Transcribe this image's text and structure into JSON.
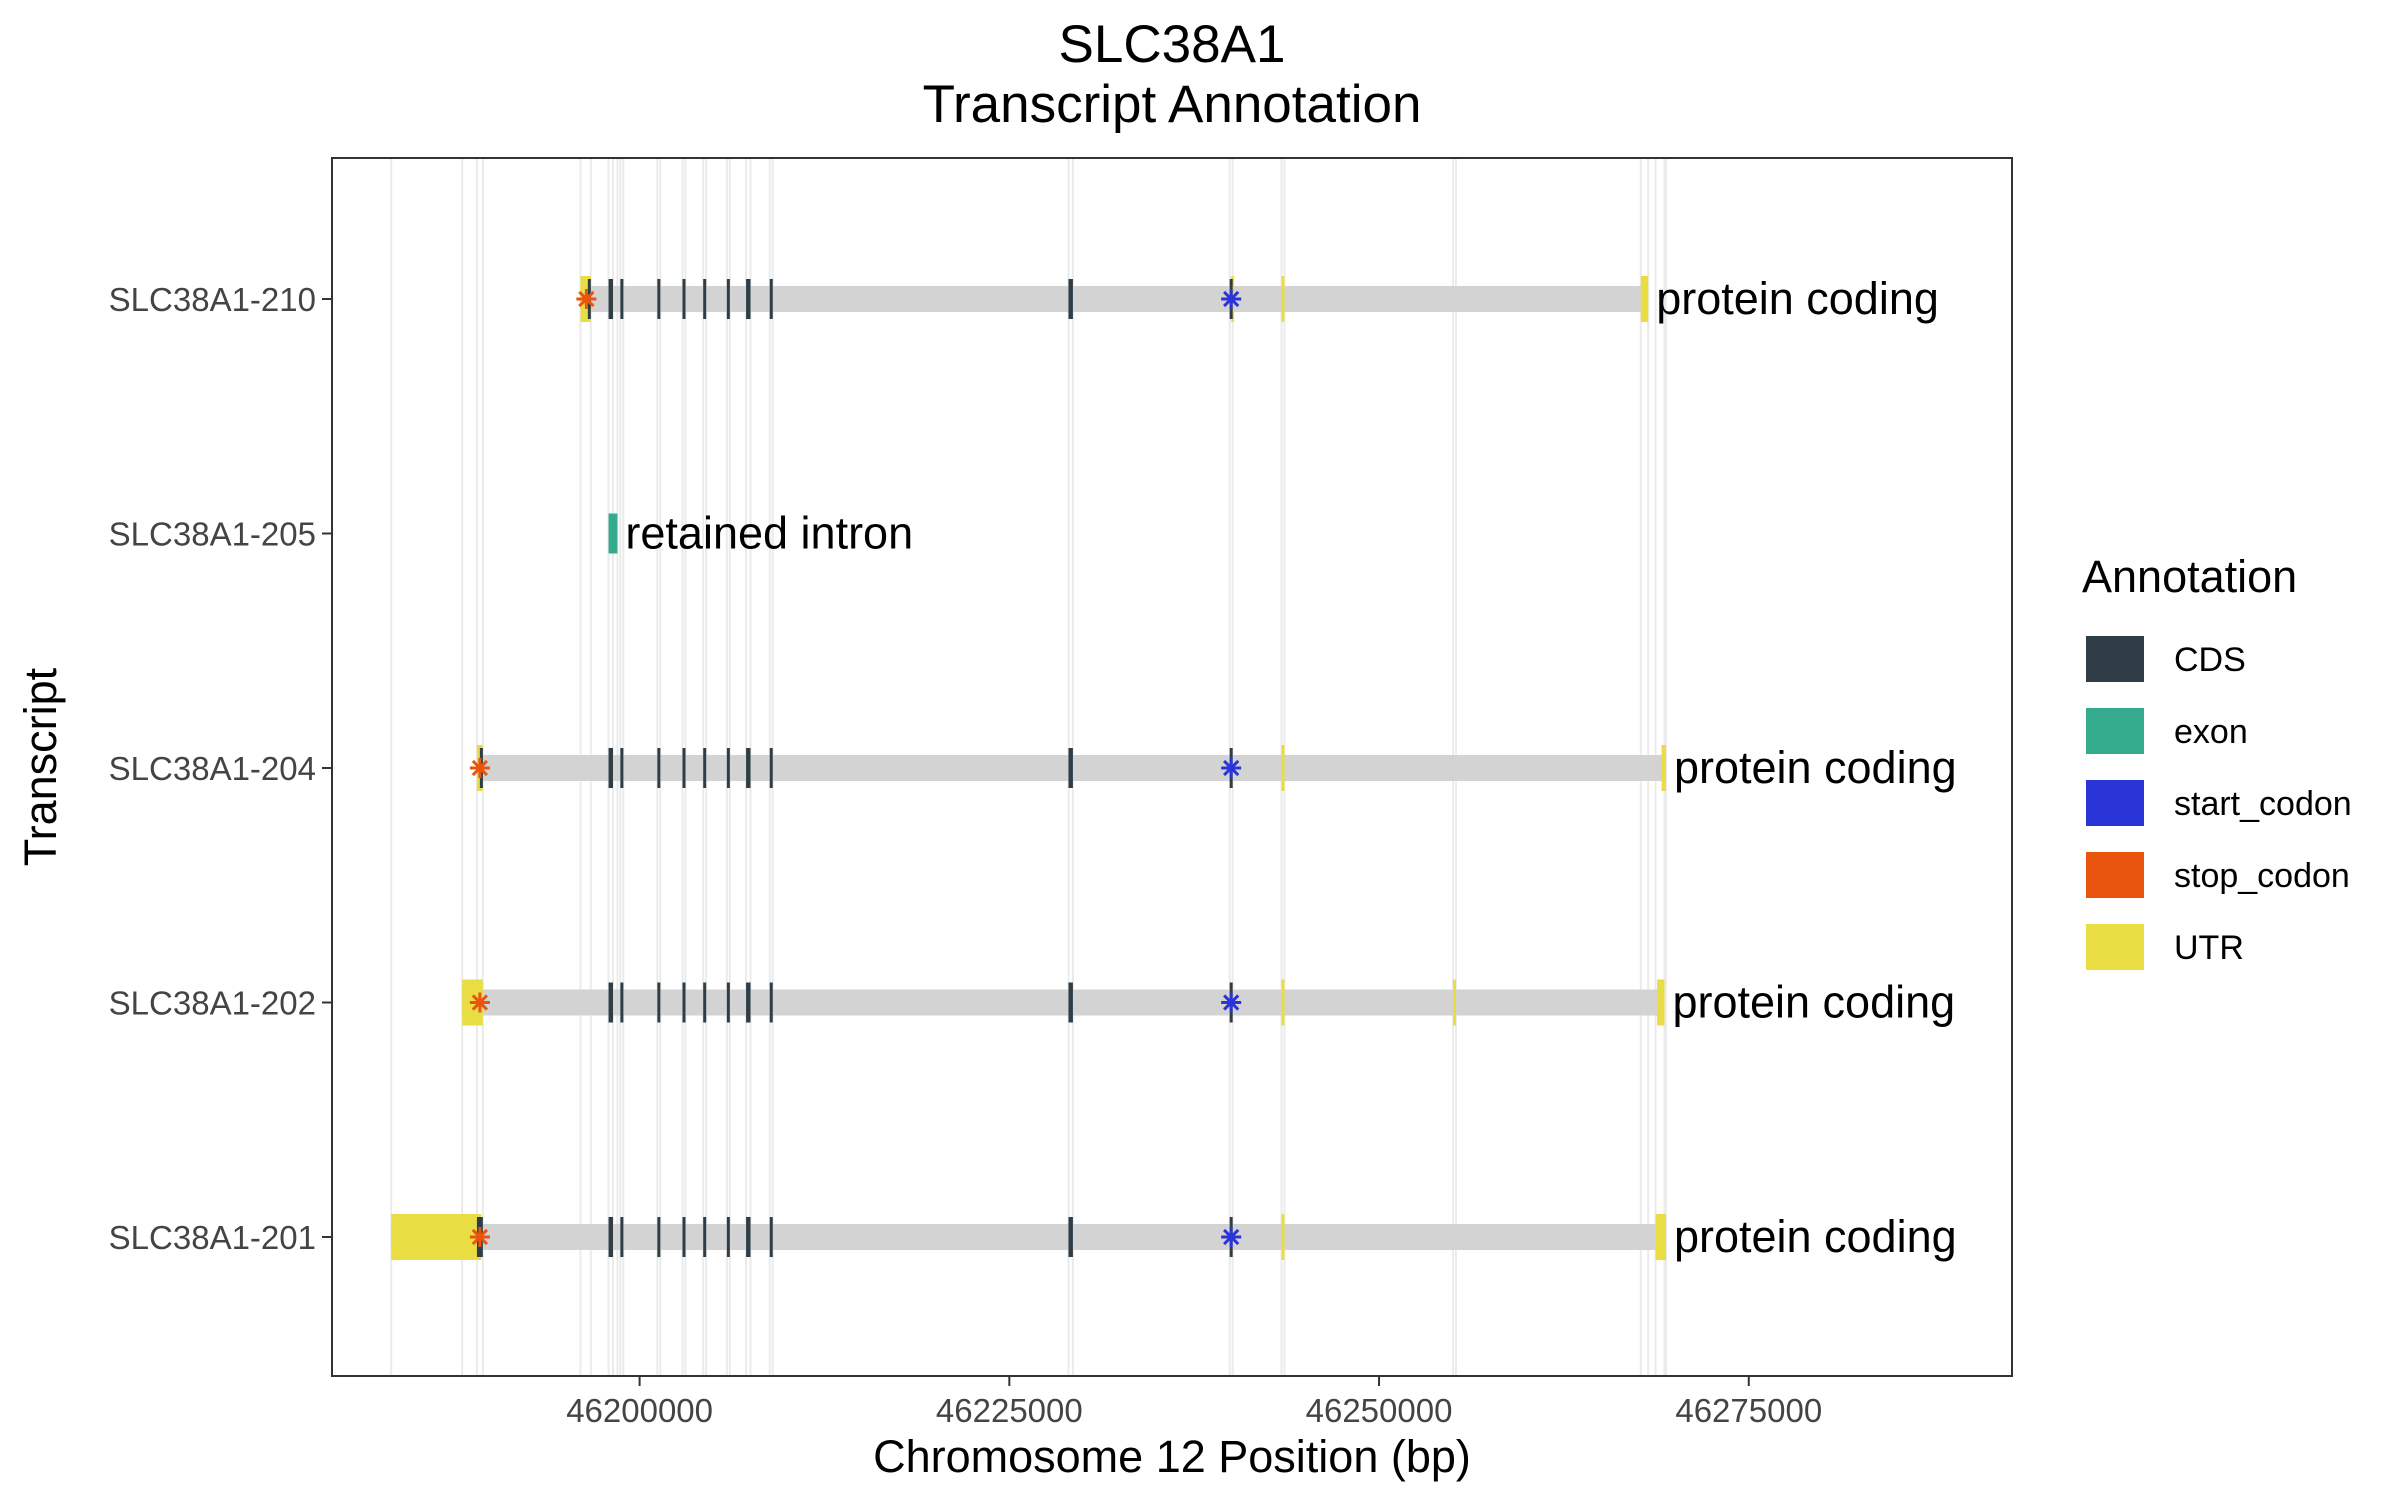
{
  "chart_data": {
    "type": "gene-track",
    "title": "SLC38A1",
    "subtitle": "Transcript Annotation",
    "xlabel": "Chromosome 12 Position (bp)",
    "ylabel": "Transcript",
    "xlim": [
      46179200,
      46292800
    ],
    "x_ticks": [
      46200000,
      46225000,
      46250000,
      46275000
    ],
    "x_tick_labels": [
      "46200000",
      "46225000",
      "46250000",
      "46275000"
    ],
    "grid": "vertical lines at feature boundaries",
    "legend": {
      "title": "Annotation",
      "position": "right",
      "items": [
        {
          "label": "CDS",
          "color": "#2F3D46"
        },
        {
          "label": "exon",
          "color": "#35AB8E"
        },
        {
          "label": "start_codon",
          "color": "#2B34D6"
        },
        {
          "label": "stop_codon",
          "color": "#E9540E"
        },
        {
          "label": "UTR",
          "color": "#E8DE44"
        }
      ]
    },
    "intron_color": "#D3D3D3",
    "transcripts": [
      {
        "name": "SLC38A1-210",
        "biotype": "protein coding",
        "start": 46196000,
        "end": 46268200,
        "features": [
          {
            "type": "UTR",
            "start": 46196000,
            "end": 46196700
          },
          {
            "type": "CDS",
            "start": 46196500,
            "end": 46196700
          },
          {
            "type": "CDS",
            "start": 46197900,
            "end": 46198200
          },
          {
            "type": "CDS",
            "start": 46198700,
            "end": 46198900
          },
          {
            "type": "CDS",
            "start": 46201200,
            "end": 46201400
          },
          {
            "type": "CDS",
            "start": 46202900,
            "end": 46203100
          },
          {
            "type": "CDS",
            "start": 46204300,
            "end": 46204500
          },
          {
            "type": "CDS",
            "start": 46205900,
            "end": 46206100
          },
          {
            "type": "CDS",
            "start": 46207200,
            "end": 46207500
          },
          {
            "type": "CDS",
            "start": 46208800,
            "end": 46209000
          },
          {
            "type": "CDS",
            "start": 46229000,
            "end": 46229300
          },
          {
            "type": "CDS",
            "start": 46239900,
            "end": 46240100
          },
          {
            "type": "UTR",
            "start": 46240000,
            "end": 46240100
          },
          {
            "type": "UTR",
            "start": 46243400,
            "end": 46243600
          },
          {
            "type": "UTR",
            "start": 46267700,
            "end": 46268200
          }
        ],
        "stop_codon": 46196400,
        "start_codon": 46240000
      },
      {
        "name": "SLC38A1-205",
        "biotype": "retained intron",
        "start": 46197900,
        "end": 46198500,
        "features": [
          {
            "type": "exon",
            "start": 46197900,
            "end": 46198500
          }
        ]
      },
      {
        "name": "SLC38A1-204",
        "biotype": "protein coding",
        "start": 46189000,
        "end": 46269400,
        "features": [
          {
            "type": "UTR",
            "start": 46189000,
            "end": 46189400
          },
          {
            "type": "CDS",
            "start": 46189200,
            "end": 46189400
          },
          {
            "type": "CDS",
            "start": 46197900,
            "end": 46198200
          },
          {
            "type": "CDS",
            "start": 46198700,
            "end": 46198900
          },
          {
            "type": "CDS",
            "start": 46201200,
            "end": 46201400
          },
          {
            "type": "CDS",
            "start": 46202900,
            "end": 46203100
          },
          {
            "type": "CDS",
            "start": 46204300,
            "end": 46204500
          },
          {
            "type": "CDS",
            "start": 46205900,
            "end": 46206100
          },
          {
            "type": "CDS",
            "start": 46207200,
            "end": 46207500
          },
          {
            "type": "CDS",
            "start": 46208800,
            "end": 46209000
          },
          {
            "type": "CDS",
            "start": 46229000,
            "end": 46229300
          },
          {
            "type": "CDS",
            "start": 46239900,
            "end": 46240100
          },
          {
            "type": "UTR",
            "start": 46243400,
            "end": 46243600
          },
          {
            "type": "UTR",
            "start": 46269100,
            "end": 46269400
          }
        ],
        "stop_codon": 46189200,
        "start_codon": 46240000
      },
      {
        "name": "SLC38A1-202",
        "biotype": "protein coding",
        "start": 46188000,
        "end": 46269300,
        "features": [
          {
            "type": "UTR",
            "start": 46188000,
            "end": 46189400
          },
          {
            "type": "CDS",
            "start": 46197900,
            "end": 46198200
          },
          {
            "type": "CDS",
            "start": 46198700,
            "end": 46198900
          },
          {
            "type": "CDS",
            "start": 46201200,
            "end": 46201400
          },
          {
            "type": "CDS",
            "start": 46202900,
            "end": 46203100
          },
          {
            "type": "CDS",
            "start": 46204300,
            "end": 46204500
          },
          {
            "type": "CDS",
            "start": 46205900,
            "end": 46206100
          },
          {
            "type": "CDS",
            "start": 46207200,
            "end": 46207500
          },
          {
            "type": "CDS",
            "start": 46208800,
            "end": 46209000
          },
          {
            "type": "CDS",
            "start": 46229000,
            "end": 46229300
          },
          {
            "type": "CDS",
            "start": 46239900,
            "end": 46240100
          },
          {
            "type": "UTR",
            "start": 46243400,
            "end": 46243600
          },
          {
            "type": "UTR",
            "start": 46255000,
            "end": 46255200
          },
          {
            "type": "UTR",
            "start": 46268800,
            "end": 46269300
          }
        ],
        "stop_codon": 46189200,
        "start_codon": 46240000
      },
      {
        "name": "SLC38A1-201",
        "biotype": "protein coding",
        "start": 46183200,
        "end": 46269400,
        "features": [
          {
            "type": "UTR",
            "start": 46183200,
            "end": 46189300
          },
          {
            "type": "CDS",
            "start": 46189000,
            "end": 46189400
          },
          {
            "type": "CDS",
            "start": 46197900,
            "end": 46198200
          },
          {
            "type": "CDS",
            "start": 46198700,
            "end": 46198900
          },
          {
            "type": "CDS",
            "start": 46201200,
            "end": 46201400
          },
          {
            "type": "CDS",
            "start": 46202900,
            "end": 46203100
          },
          {
            "type": "CDS",
            "start": 46204300,
            "end": 46204500
          },
          {
            "type": "CDS",
            "start": 46205900,
            "end": 46206100
          },
          {
            "type": "CDS",
            "start": 46207200,
            "end": 46207500
          },
          {
            "type": "CDS",
            "start": 46208800,
            "end": 46209000
          },
          {
            "type": "CDS",
            "start": 46229000,
            "end": 46229300
          },
          {
            "type": "CDS",
            "start": 46239900,
            "end": 46240100
          },
          {
            "type": "UTR",
            "start": 46243400,
            "end": 46243600
          },
          {
            "type": "UTR",
            "start": 46268700,
            "end": 46269400
          }
        ],
        "stop_codon": 46189200,
        "start_codon": 46240000
      }
    ],
    "boundary_lines": [
      46183200,
      46188000,
      46189000,
      46189400,
      46196000,
      46196700,
      46197900,
      46198200,
      46198500,
      46198700,
      46198900,
      46201200,
      46201400,
      46202900,
      46203100,
      46204300,
      46204500,
      46205900,
      46206100,
      46207200,
      46207500,
      46208800,
      46209000,
      46229000,
      46229300,
      46239900,
      46240100,
      46243400,
      46243600,
      46255000,
      46255200,
      46267700,
      46268200,
      46268700,
      46269300,
      46269400
    ]
  }
}
